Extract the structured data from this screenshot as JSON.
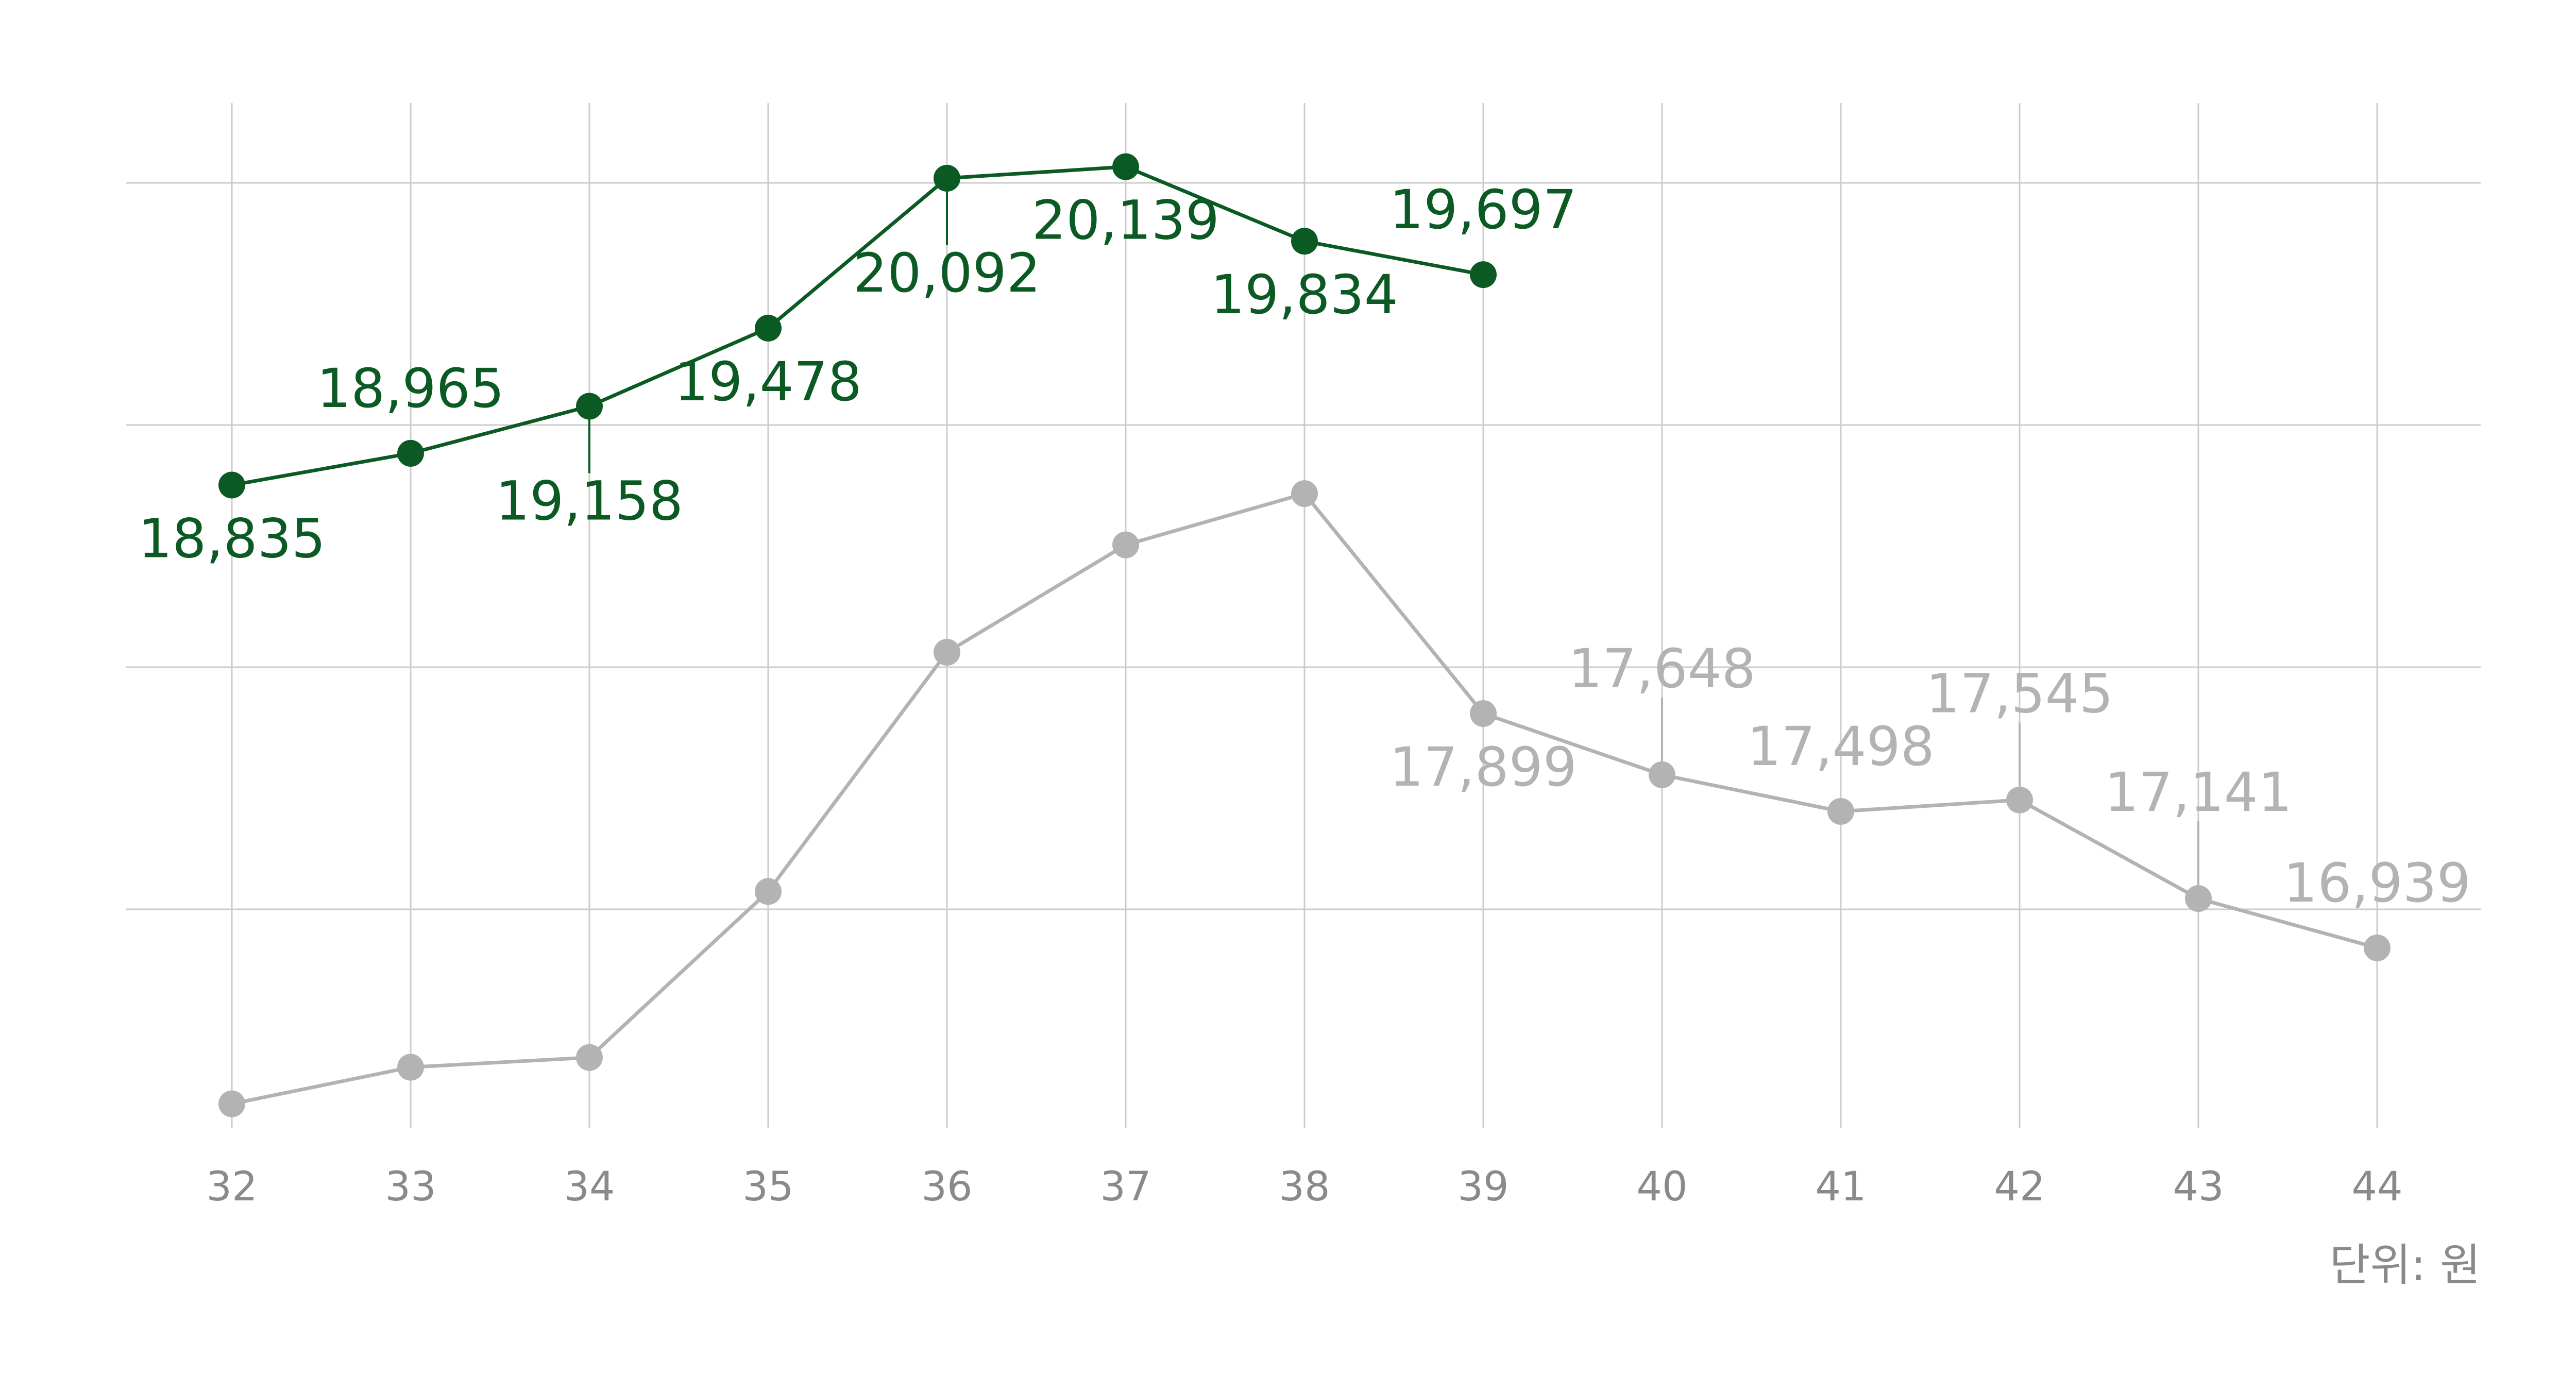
{
  "chart_data": {
    "type": "line",
    "x": [
      "32",
      "33",
      "34",
      "35",
      "36",
      "37",
      "38",
      "39",
      "40",
      "41",
      "42",
      "43",
      "44"
    ],
    "series": [
      {
        "values": [
          18835,
          18965,
          19158,
          19478,
          20092,
          20139,
          19834,
          19697,
          null,
          null,
          null,
          null,
          null
        ],
        "labels": [
          "18,835",
          "18,965",
          "19,158",
          "19,478",
          "20,092",
          "20,139",
          "19,834",
          "19,697",
          null,
          null,
          null,
          null,
          null
        ],
        "color": "#0b5a24"
      },
      {
        "values": [
          16300,
          16450,
          16490,
          17170,
          18150,
          18590,
          18800,
          17899,
          17648,
          17498,
          17545,
          17141,
          16939
        ],
        "labels": [
          null,
          null,
          null,
          null,
          null,
          null,
          null,
          "17,899",
          "17,648",
          "17,498",
          "17,545",
          "17,141",
          "16,939"
        ],
        "color": "#b3b3b3"
      }
    ],
    "ylim": [
      16200,
      20400
    ],
    "grid": true,
    "unit_note": "단위: 원"
  }
}
